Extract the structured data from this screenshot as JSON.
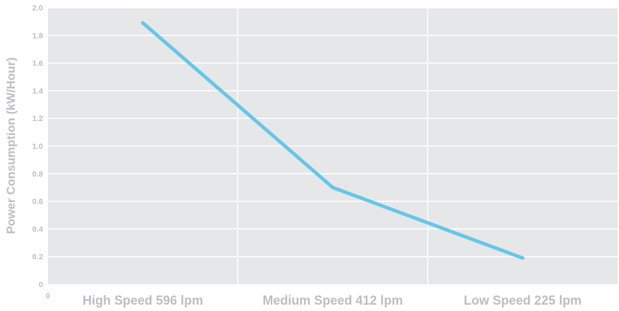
{
  "chart_data": {
    "type": "line",
    "ylabel": "Power Consumption (kW/Hour)",
    "xlabel": "",
    "categories": [
      "High Speed 596 lpm",
      "Medium Speed 412 lpm",
      "Low Speed 225 lpm"
    ],
    "y_ticks": [
      "0",
      "0.2",
      "0.4",
      "0.6",
      "0.8",
      "1.0",
      "1.2",
      "1.4",
      "1.6",
      "1.8",
      "2.0"
    ],
    "ylim": [
      0,
      2.0
    ],
    "grid": true,
    "series": [
      {
        "values": [
          1.89,
          0.7,
          0.19
        ]
      }
    ],
    "x_origin_label": "0"
  },
  "colors": {
    "background": "#e6e7e9",
    "grid": "#ffffff",
    "line": "#67c6e6",
    "text": "#bcbec0"
  }
}
